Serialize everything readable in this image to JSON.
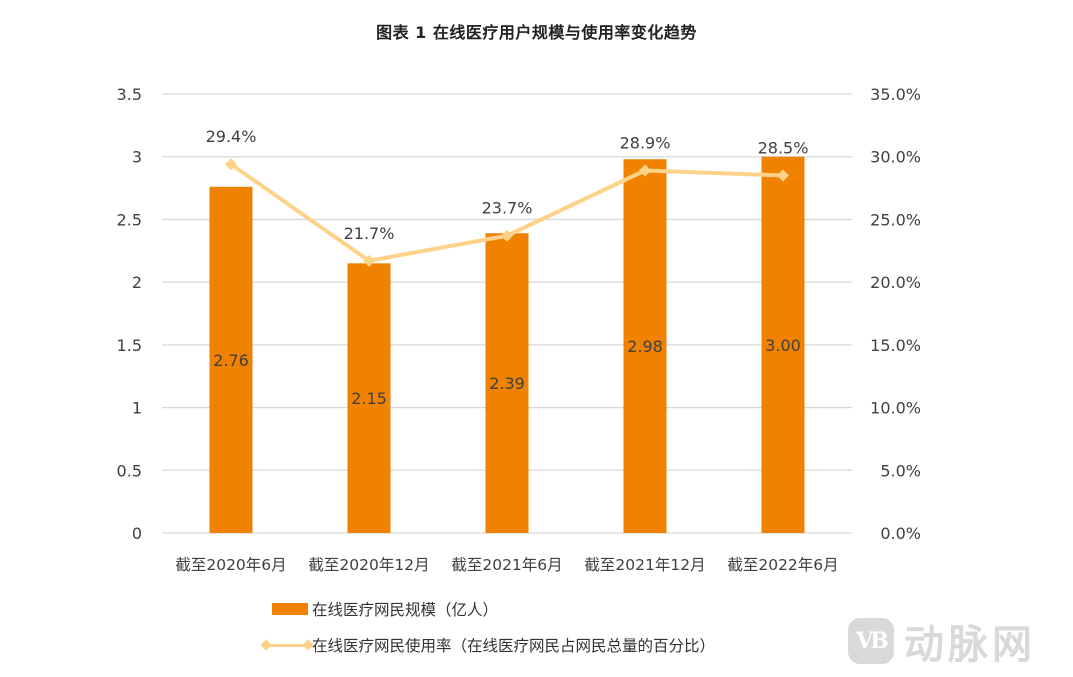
{
  "title": "图表  1 在线医疗用户规模与使用率变化趋势",
  "chart_data": {
    "type": "bar+line",
    "title": "图表 1 在线医疗用户规模与使用率变化趋势",
    "categories": [
      "截至2020年6月",
      "截至2020年12月",
      "截至2021年6月",
      "截至2021年12月",
      "截至2022年6月"
    ],
    "series": [
      {
        "name": "在线医疗网民规模（亿人）",
        "type": "bar",
        "axis": "left",
        "color": "#F08200",
        "values": [
          2.76,
          2.15,
          2.39,
          2.98,
          3.0
        ],
        "labels": [
          "2.76",
          "2.15",
          "2.39",
          "2.98",
          "3.00"
        ]
      },
      {
        "name": "在线医疗网民使用率（在线医疗网民占网民总量的百分比）",
        "type": "line",
        "axis": "right",
        "color": "#FFD28A",
        "marker": "diamond",
        "values": [
          29.4,
          21.7,
          23.7,
          28.9,
          28.5
        ],
        "labels": [
          "29.4%",
          "21.7%",
          "23.7%",
          "28.9%",
          "28.5%"
        ]
      }
    ],
    "left_axis": {
      "ylim": [
        0,
        3.5
      ],
      "ticks": [
        "0",
        "0.5",
        "1",
        "1.5",
        "2",
        "2.5",
        "3",
        "3.5"
      ]
    },
    "right_axis": {
      "ylim": [
        0,
        35
      ],
      "ticks": [
        "0.0%",
        "5.0%",
        "10.0%",
        "15.0%",
        "20.0%",
        "25.0%",
        "30.0%",
        "35.0%"
      ]
    },
    "grid": true,
    "legend_position": "bottom"
  },
  "legend": {
    "bar_label": "在线医疗网民规模（亿人）",
    "line_label": "在线医疗网民使用率（在线医疗网民占网民总量的百分比）"
  },
  "watermark": {
    "logo": "VB",
    "text": "动脉网"
  }
}
